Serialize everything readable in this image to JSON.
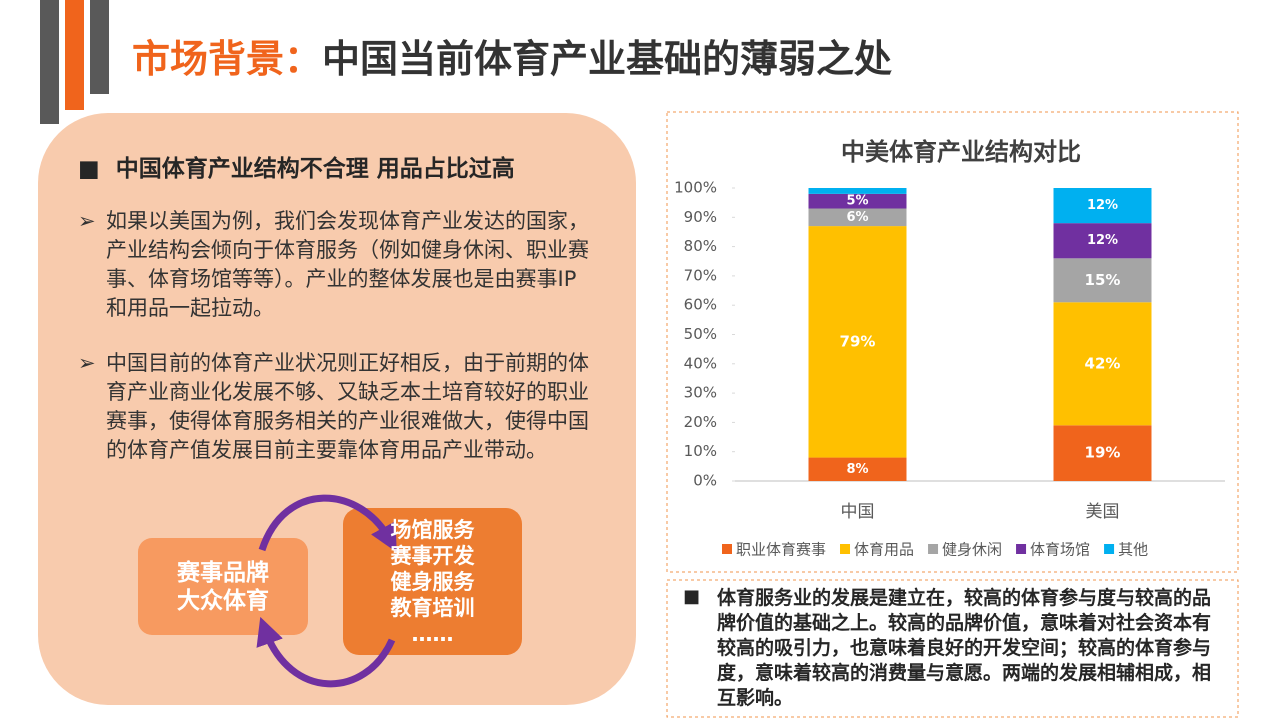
{
  "header": {
    "title_highlight": "市场背景：",
    "title_rest": "中国当前体育产业基础的薄弱之处"
  },
  "left_panel": {
    "heading": "中国体育产业结构不合理 用品占比过高",
    "bullets": [
      "如果以美国为例，我们会发现体育产业发达的国家，产业结构会倾向于体育服务（例如健身休闲、职业赛事、体育场馆等等）。产业的整体发展也是由赛事IP和用品一起拉动。",
      "中国目前的体育产业状况则正好相反，由于前期的体育产业商业化发展不够、又缺乏本土培育较好的职业赛事，使得体育服务相关的产业很难做大，使得中国的体育产值发展目前主要靠体育用品产业带动。"
    ],
    "diagram": {
      "left_box": [
        "赛事品牌",
        "大众体育"
      ],
      "right_box": [
        "场馆服务",
        "赛事开发",
        "健身服务",
        "教育培训",
        "……"
      ]
    }
  },
  "chart_data": {
    "type": "stacked_bar",
    "title": "中美体育产业结构对比",
    "categories": [
      "中国",
      "美国"
    ],
    "series": [
      {
        "name": "职业体育赛事",
        "color": "#f0641c",
        "values": [
          8,
          19
        ],
        "value_labels": [
          "8%",
          "19%"
        ]
      },
      {
        "name": "体育用品",
        "color": "#ffc000",
        "values": [
          79,
          42
        ],
        "value_labels": [
          "79%",
          "42%"
        ]
      },
      {
        "name": "健身休闲",
        "color": "#a5a5a5",
        "values": [
          6,
          15
        ],
        "value_labels": [
          "6%",
          "15%"
        ]
      },
      {
        "name": "体育场馆",
        "color": "#7030a0",
        "values": [
          5,
          12
        ],
        "value_labels": [
          "5%",
          "12%"
        ]
      },
      {
        "name": "其他",
        "color": "#00b0f0",
        "values": [
          2,
          12
        ],
        "value_labels": [
          null,
          "12%"
        ]
      }
    ],
    "ylim": [
      0,
      100
    ],
    "yticks": [
      {
        "value": 0,
        "label": "0%"
      },
      {
        "value": 10,
        "label": "10%"
      },
      {
        "value": 20,
        "label": "20%"
      },
      {
        "value": 30,
        "label": "30%"
      },
      {
        "value": 40,
        "label": "40%"
      },
      {
        "value": 50,
        "label": "50%"
      },
      {
        "value": 60,
        "label": "60%"
      },
      {
        "value": 70,
        "label": "70%"
      },
      {
        "value": 80,
        "label": "80%"
      },
      {
        "value": 90,
        "label": "90%"
      },
      {
        "value": 100,
        "label": "100%"
      }
    ],
    "legend": "bottom"
  },
  "note": "体育服务业的发展是建立在，较高的体育参与度与较高的品牌价值的基础之上。较高的品牌价值，意味着对社会资本有较高的吸引力，也意味着良好的开发空间；较高的体育参与度，意味着较高的消费量与意愿。两端的发展相辅相成，相互影响。"
}
